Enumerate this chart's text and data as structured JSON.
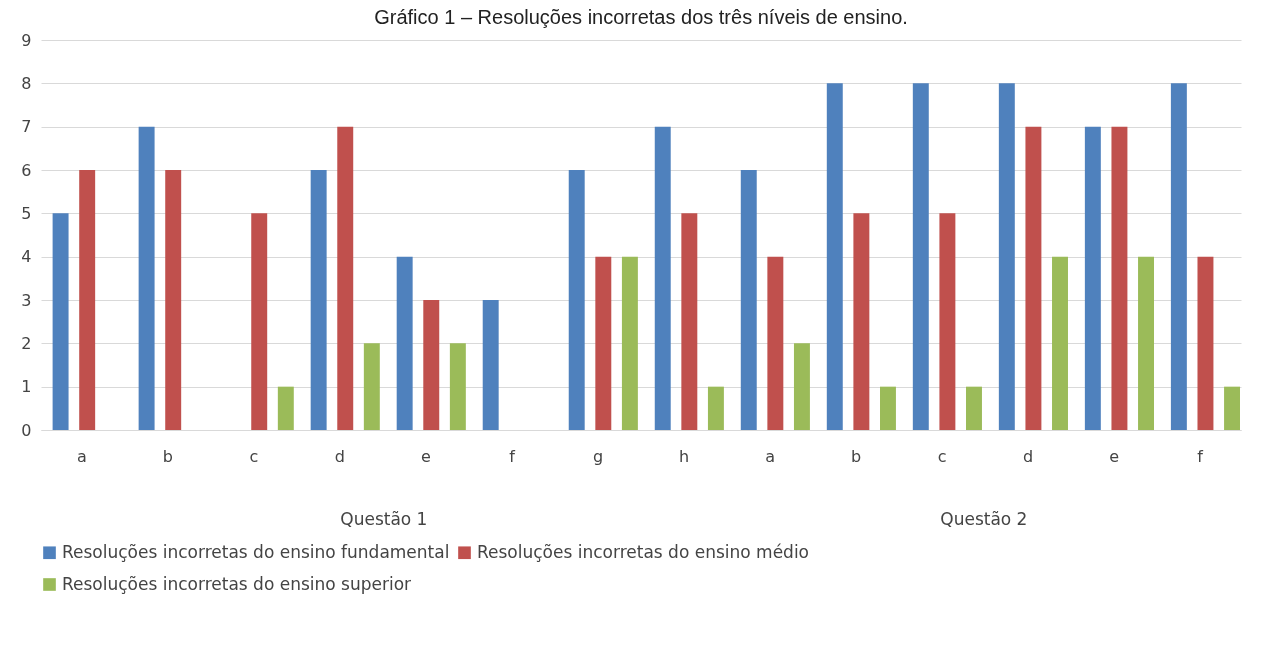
{
  "chart_data": {
    "type": "bar",
    "title": "Gráfico 1 – Resoluções incorretas dos três níveis de ensino.",
    "categories": [
      "a",
      "b",
      "c",
      "d",
      "e",
      "f",
      "g",
      "h",
      "a",
      "b",
      "c",
      "d",
      "e",
      "f"
    ],
    "series": [
      {
        "name": "Resoluções incorretas do ensino fundamental",
        "color": "#4f81bd",
        "values": [
          5,
          7,
          0,
          6,
          4,
          3,
          6,
          7,
          6,
          8,
          8,
          8,
          7,
          8
        ]
      },
      {
        "name": "Resoluções incorretas do ensino médio",
        "color": "#c0504d",
        "values": [
          6,
          6,
          5,
          7,
          3,
          0,
          4,
          5,
          4,
          5,
          5,
          7,
          7,
          4
        ]
      },
      {
        "name": "Resoluções incorretas do ensino superior",
        "color": "#9bbb59",
        "values": [
          0,
          0,
          1,
          2,
          2,
          0,
          4,
          1,
          2,
          1,
          1,
          4,
          4,
          1
        ]
      }
    ],
    "annotations": [
      "Questão 1",
      "Questão 2"
    ],
    "ylim": [
      0,
      9
    ],
    "yticks": [
      0,
      1,
      2,
      3,
      4,
      5,
      6,
      7,
      8,
      9
    ],
    "grid": "y",
    "legend": "bottom"
  }
}
